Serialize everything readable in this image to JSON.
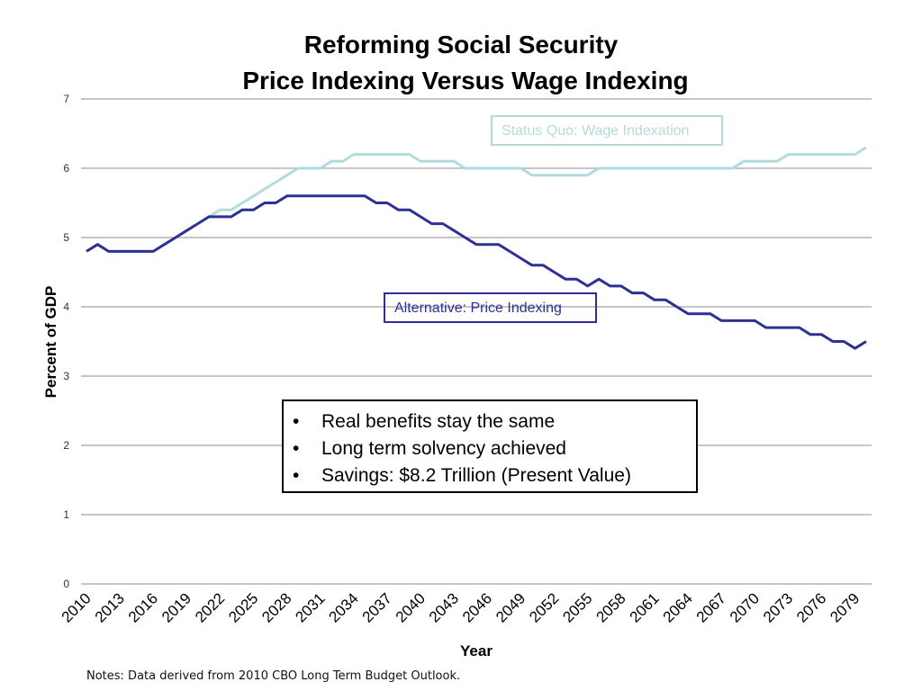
{
  "chart_data": {
    "type": "line",
    "title": "Reforming Social Security",
    "subtitle": "Price Indexing Versus Wage Indexing",
    "xlabel": "Year",
    "ylabel": "Percent of GDP",
    "ylim": [
      0,
      7
    ],
    "yticks": [
      "0",
      "1",
      "2",
      "3",
      "4",
      "5",
      "6",
      "7"
    ],
    "xlim": [
      2010,
      2080
    ],
    "xticks": [
      "2010",
      "2013",
      "2016",
      "2019",
      "2022",
      "2025",
      "2028",
      "2031",
      "2034",
      "2037",
      "2040",
      "2043",
      "2046",
      "2049",
      "2052",
      "2055",
      "2058",
      "2061",
      "2064",
      "2067",
      "2070",
      "2073",
      "2076",
      "2079"
    ],
    "grid": true,
    "x": [
      2010,
      2011,
      2012,
      2013,
      2014,
      2015,
      2016,
      2017,
      2018,
      2019,
      2020,
      2021,
      2022,
      2023,
      2024,
      2025,
      2026,
      2027,
      2028,
      2029,
      2030,
      2031,
      2032,
      2033,
      2034,
      2035,
      2036,
      2037,
      2038,
      2039,
      2040,
      2041,
      2042,
      2043,
      2044,
      2045,
      2046,
      2047,
      2048,
      2049,
      2050,
      2051,
      2052,
      2053,
      2054,
      2055,
      2056,
      2057,
      2058,
      2059,
      2060,
      2061,
      2062,
      2063,
      2064,
      2065,
      2066,
      2067,
      2068,
      2069,
      2070,
      2071,
      2072,
      2073,
      2074,
      2075,
      2076,
      2077,
      2078,
      2079,
      2080
    ],
    "series": [
      {
        "name": "Status Quo: Wage Indexation",
        "color": "#b2dcdc",
        "values": [
          4.8,
          4.9,
          4.8,
          4.8,
          4.8,
          4.8,
          4.8,
          4.9,
          5.0,
          5.1,
          5.2,
          5.3,
          5.4,
          5.4,
          5.5,
          5.6,
          5.7,
          5.8,
          5.9,
          6.0,
          6.0,
          6.0,
          6.1,
          6.1,
          6.2,
          6.2,
          6.2,
          6.2,
          6.2,
          6.2,
          6.1,
          6.1,
          6.1,
          6.1,
          6.0,
          6.0,
          6.0,
          6.0,
          6.0,
          6.0,
          5.9,
          5.9,
          5.9,
          5.9,
          5.9,
          5.9,
          6.0,
          6.0,
          6.0,
          6.0,
          6.0,
          6.0,
          6.0,
          6.0,
          6.0,
          6.0,
          6.0,
          6.0,
          6.0,
          6.1,
          6.1,
          6.1,
          6.1,
          6.2,
          6.2,
          6.2,
          6.2,
          6.2,
          6.2,
          6.2,
          6.3
        ]
      },
      {
        "name": "Alternative: Price Indexing",
        "color": "#2e3192",
        "values": [
          4.8,
          4.9,
          4.8,
          4.8,
          4.8,
          4.8,
          4.8,
          4.9,
          5.0,
          5.1,
          5.2,
          5.3,
          5.3,
          5.3,
          5.4,
          5.4,
          5.5,
          5.5,
          5.6,
          5.6,
          5.6,
          5.6,
          5.6,
          5.6,
          5.6,
          5.6,
          5.5,
          5.5,
          5.4,
          5.4,
          5.3,
          5.2,
          5.2,
          5.1,
          5.0,
          4.9,
          4.9,
          4.9,
          4.8,
          4.7,
          4.6,
          4.6,
          4.5,
          4.4,
          4.4,
          4.3,
          4.4,
          4.3,
          4.3,
          4.2,
          4.2,
          4.1,
          4.1,
          4.0,
          3.9,
          3.9,
          3.9,
          3.8,
          3.8,
          3.8,
          3.8,
          3.7,
          3.7,
          3.7,
          3.7,
          3.6,
          3.6,
          3.5,
          3.5,
          3.4,
          3.5
        ]
      }
    ],
    "annotations": {
      "wage_label": "Status Quo: Wage Indexation",
      "price_label": "Alternative: Price Indexing"
    }
  },
  "bullets": [
    "Real benefits stay the same",
    "Long term solvency achieved",
    "Savings: $8.2 Trillion  (Present Value)"
  ],
  "bullet_glyph": "•",
  "note": "Notes: Data derived from 2010 CBO Long Term Budget Outlook."
}
